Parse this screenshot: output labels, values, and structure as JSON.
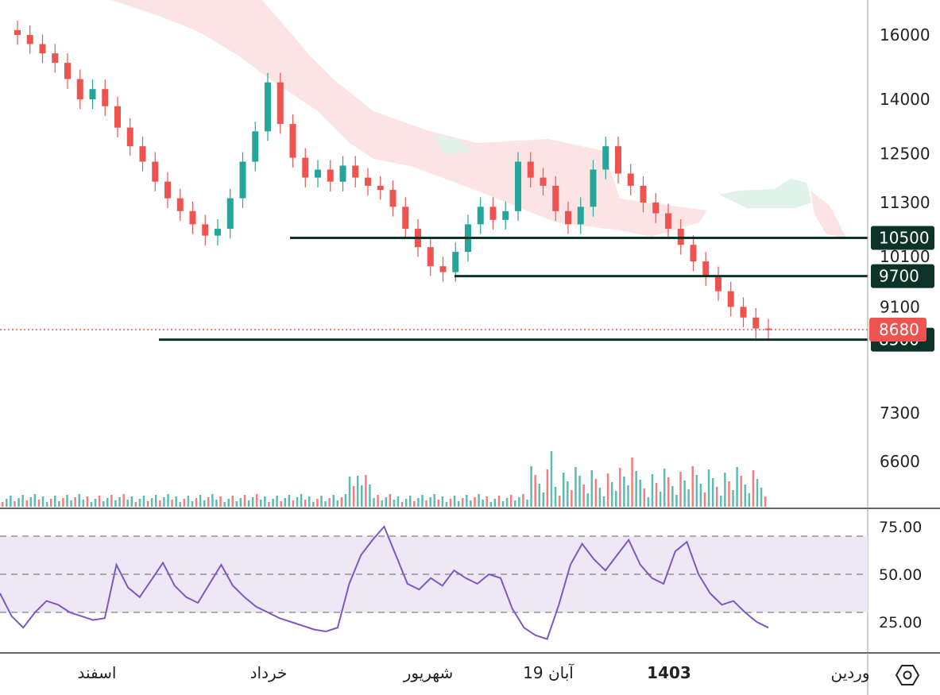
{
  "chart_data": [
    {
      "type": "candlestick",
      "title": "",
      "price_axis": {
        "ticks": [
          6600,
          7300,
          8500,
          9100,
          9700,
          10100,
          10500,
          11300,
          12500,
          14000,
          16000
        ],
        "tick_labels": [
          "6600",
          "7300",
          "8500",
          "9100",
          "9700",
          "10100",
          "10500",
          "11300",
          "12500",
          "14000",
          "16000"
        ],
        "scale": "log"
      },
      "time_axis": {
        "labels": [
          "اسفند",
          "خرداد",
          "شهریور",
          "19 آبان",
          "1403",
          "وردین"
        ],
        "bold_label": "1403"
      },
      "close_series": [
        16000,
        15700,
        15400,
        15100,
        14600,
        14000,
        14300,
        13800,
        13200,
        12700,
        12300,
        11800,
        11400,
        11100,
        10800,
        10550,
        10700,
        11400,
        12300,
        13100,
        14500,
        13300,
        12400,
        11900,
        12100,
        11800,
        12200,
        11900,
        11700,
        11600,
        11200,
        10700,
        10300,
        9900,
        9780,
        10200,
        10800,
        11200,
        10900,
        11100,
        12300,
        11900,
        11700,
        11100,
        10800,
        11200,
        12100,
        12700,
        12000,
        11700,
        11300,
        11050,
        10700,
        10350,
        10000,
        9700,
        9400,
        9100,
        8900,
        8700,
        8680
      ],
      "last_price": 8680,
      "levels": [
        10500,
        9700,
        8500
      ],
      "colors": {
        "up": "#26a69a",
        "down": "#ef5350",
        "level": "#0d3328",
        "last_price": "#ef5350",
        "rsi": "#7e57c2",
        "rsi_band": "#ede7f6",
        "cloud_bear": "#fde4e4",
        "cloud_bull": "#e0f2e9"
      },
      "indicators": [
        "Ichimoku cloud",
        "Volume"
      ]
    },
    {
      "type": "line",
      "title": "",
      "name": "RSI",
      "y_axis": {
        "ticks": [
          25,
          50,
          75
        ],
        "tick_labels": [
          "25.00",
          "50.00",
          "75.00"
        ]
      },
      "band": [
        30,
        70
      ],
      "values": [
        40,
        28,
        22,
        30,
        36,
        34,
        30,
        28,
        26,
        27,
        55,
        43,
        38,
        47,
        56,
        44,
        38,
        35,
        45,
        55,
        44,
        38,
        33,
        30,
        27,
        25,
        23,
        21,
        20,
        22,
        45,
        60,
        68,
        75,
        60,
        45,
        42,
        48,
        44,
        52,
        48,
        45,
        50,
        48,
        32,
        22,
        18,
        16,
        34,
        55,
        66,
        58,
        52,
        60,
        68,
        55,
        48,
        45,
        62,
        67,
        50,
        40,
        34,
        36,
        30,
        25,
        22
      ]
    }
  ],
  "brand": {
    "logo_icon": "hexagon-logo-icon"
  }
}
